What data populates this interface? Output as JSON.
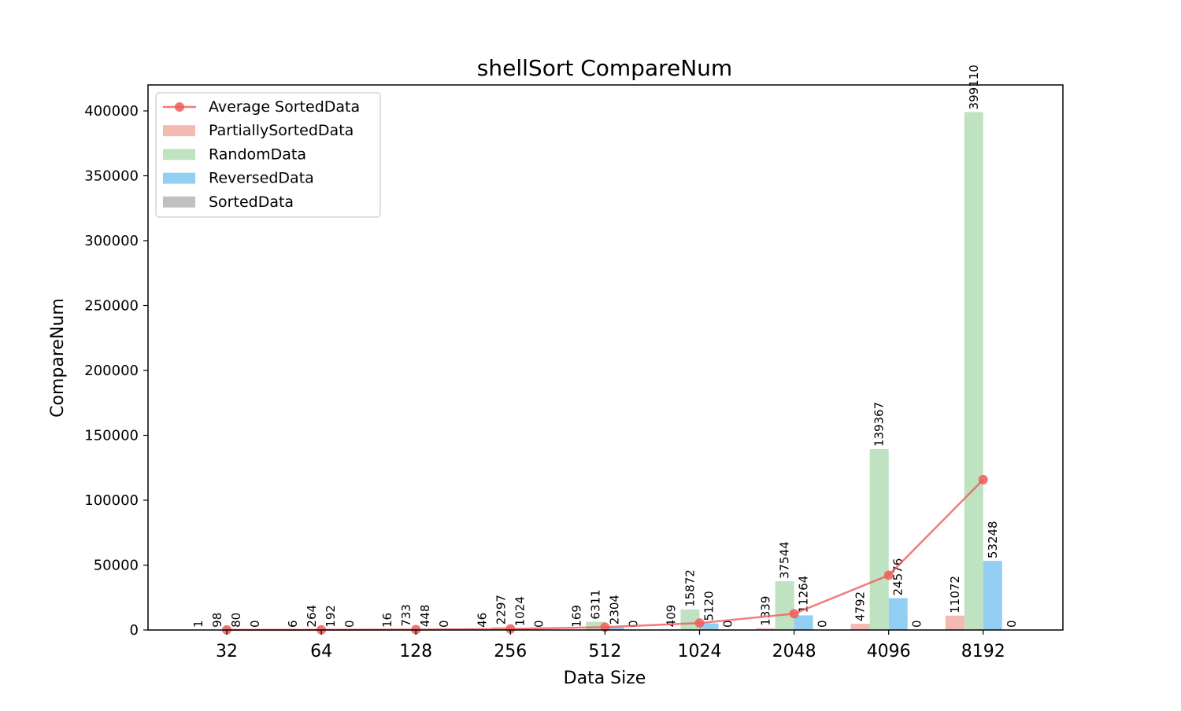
{
  "chart_data": {
    "type": "bar",
    "title": "shellSort CompareNum",
    "xlabel": "Data Size",
    "ylabel": "CompareNum",
    "categories": [
      "32",
      "64",
      "128",
      "256",
      "512",
      "1024",
      "2048",
      "4096",
      "8192"
    ],
    "ylim": [
      0,
      420000
    ],
    "yticks": [
      0,
      50000,
      100000,
      150000,
      200000,
      250000,
      300000,
      350000,
      400000
    ],
    "grid": false,
    "legend_position": "upper-left",
    "series": [
      {
        "name": "PartiallySortedData",
        "color": "#f4b9b0",
        "values": [
          1,
          6,
          16,
          46,
          169,
          409,
          1339,
          4792,
          11072
        ]
      },
      {
        "name": "RandomData",
        "color": "#bfe2c0",
        "values": [
          98,
          264,
          733,
          2297,
          6311,
          15872,
          37544,
          139367,
          399110
        ]
      },
      {
        "name": "ReversedData",
        "color": "#93cff2",
        "values": [
          80,
          192,
          448,
          1024,
          2304,
          5120,
          11264,
          24576,
          53248
        ]
      },
      {
        "name": "SortedData",
        "color": "#c0c0c0",
        "values": [
          0,
          0,
          0,
          0,
          0,
          0,
          0,
          0,
          0
        ]
      }
    ],
    "line": {
      "name": "Average SortedData",
      "color": "#f05a5a",
      "values": [
        45,
        116,
        299,
        842,
        2196,
        5350,
        12537,
        42184,
        115858
      ]
    }
  }
}
